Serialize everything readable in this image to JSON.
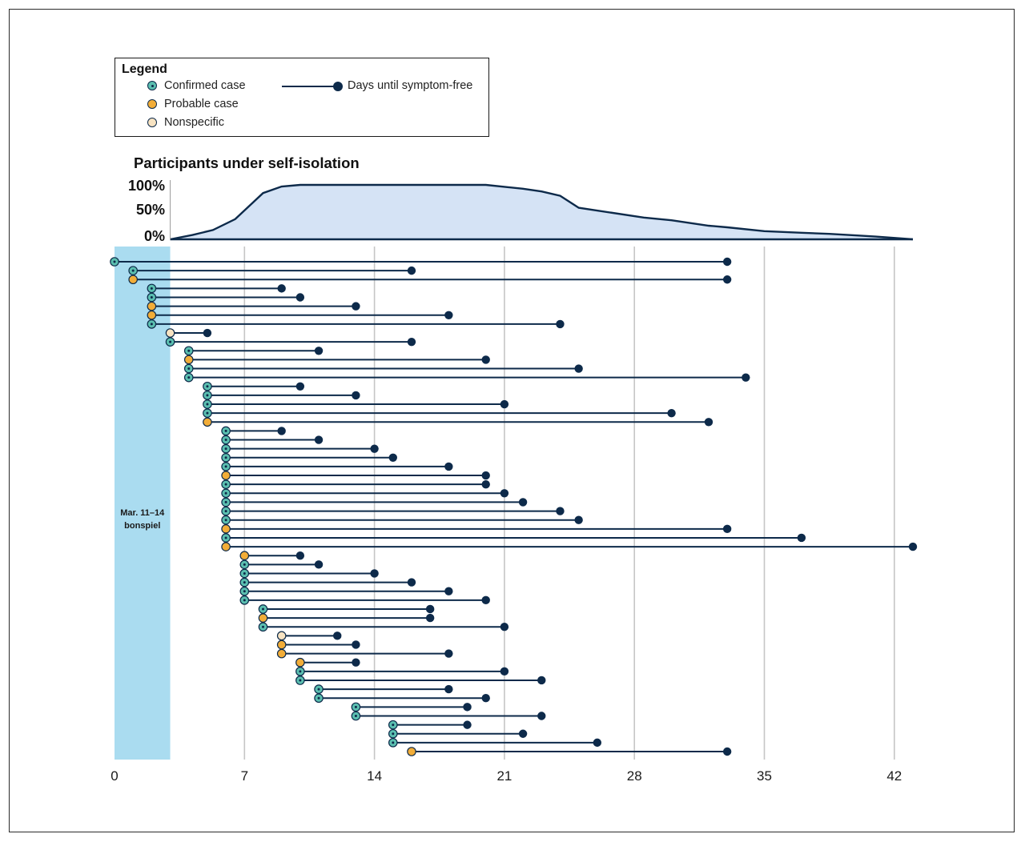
{
  "legend": {
    "title": "Legend",
    "confirmed": "Confirmed case",
    "probable": "Probable case",
    "nonspecific": "Nonspecific",
    "days": "Days until symptom-free"
  },
  "colors": {
    "confirmed": "#5bbfb0",
    "probable": "#f2ad38",
    "nonspecific": "#f7e3c2",
    "line": "#0d2a4a",
    "area_fill": "#d5e3f5",
    "bonspiel": "#aadcf0",
    "grid": "#c6c6c6"
  },
  "area_chart": {
    "title": "Participants under self-isolation",
    "y_ticks": [
      "100%",
      "50%",
      "0%"
    ]
  },
  "chart_data": {
    "type": "timeline",
    "x_ticks": [
      0,
      7,
      14,
      21,
      28,
      35,
      42
    ],
    "xlim": [
      0,
      43
    ],
    "shaded_region": {
      "start": 0,
      "end": 3,
      "label_line1": "Mar. 11–14",
      "label_line2": "bonspiel"
    },
    "isolation_curve": {
      "x": [
        3,
        4.2,
        5.3,
        6.5,
        8,
        9,
        10,
        11,
        13,
        16,
        20,
        22,
        23,
        24,
        25,
        28.5,
        30,
        32,
        33,
        35,
        37,
        38.5,
        40,
        41,
        43
      ],
      "y": [
        0,
        8,
        17,
        37,
        85,
        97,
        100,
        100,
        100,
        100,
        100,
        93,
        88,
        80,
        58,
        40,
        35,
        25,
        22,
        15,
        12,
        10,
        7,
        5,
        0
      ]
    },
    "participants": [
      {
        "type": "confirmed",
        "start": 0,
        "end": 33
      },
      {
        "type": "confirmed",
        "start": 1,
        "end": 16
      },
      {
        "type": "probable",
        "start": 1,
        "end": 33
      },
      {
        "type": "confirmed",
        "start": 2,
        "end": 9
      },
      {
        "type": "confirmed",
        "start": 2,
        "end": 10
      },
      {
        "type": "probable",
        "start": 2,
        "end": 13
      },
      {
        "type": "probable",
        "start": 2,
        "end": 18
      },
      {
        "type": "confirmed",
        "start": 2,
        "end": 24
      },
      {
        "type": "nonspecific",
        "start": 3,
        "end": 5
      },
      {
        "type": "confirmed",
        "start": 3,
        "end": 16
      },
      {
        "type": "confirmed",
        "start": 4,
        "end": 11
      },
      {
        "type": "probable",
        "start": 4,
        "end": 20
      },
      {
        "type": "confirmed",
        "start": 4,
        "end": 25
      },
      {
        "type": "confirmed",
        "start": 4,
        "end": 34
      },
      {
        "type": "confirmed",
        "start": 5,
        "end": 10
      },
      {
        "type": "confirmed",
        "start": 5,
        "end": 13
      },
      {
        "type": "confirmed",
        "start": 5,
        "end": 21
      },
      {
        "type": "confirmed",
        "start": 5,
        "end": 30
      },
      {
        "type": "probable",
        "start": 5,
        "end": 32
      },
      {
        "type": "confirmed",
        "start": 6,
        "end": 9
      },
      {
        "type": "confirmed",
        "start": 6,
        "end": 11
      },
      {
        "type": "confirmed",
        "start": 6,
        "end": 14
      },
      {
        "type": "confirmed",
        "start": 6,
        "end": 15
      },
      {
        "type": "confirmed",
        "start": 6,
        "end": 18
      },
      {
        "type": "probable",
        "start": 6,
        "end": 20
      },
      {
        "type": "confirmed",
        "start": 6,
        "end": 20
      },
      {
        "type": "confirmed",
        "start": 6,
        "end": 21
      },
      {
        "type": "confirmed",
        "start": 6,
        "end": 22
      },
      {
        "type": "confirmed",
        "start": 6,
        "end": 24
      },
      {
        "type": "confirmed",
        "start": 6,
        "end": 25
      },
      {
        "type": "probable",
        "start": 6,
        "end": 33
      },
      {
        "type": "confirmed",
        "start": 6,
        "end": 37
      },
      {
        "type": "probable",
        "start": 6,
        "end": 43
      },
      {
        "type": "probable",
        "start": 7,
        "end": 10
      },
      {
        "type": "confirmed",
        "start": 7,
        "end": 11
      },
      {
        "type": "confirmed",
        "start": 7,
        "end": 14
      },
      {
        "type": "confirmed",
        "start": 7,
        "end": 16
      },
      {
        "type": "confirmed",
        "start": 7,
        "end": 18
      },
      {
        "type": "confirmed",
        "start": 7,
        "end": 20
      },
      {
        "type": "confirmed",
        "start": 8,
        "end": 17
      },
      {
        "type": "probable",
        "start": 8,
        "end": 17
      },
      {
        "type": "confirmed",
        "start": 8,
        "end": 21
      },
      {
        "type": "nonspecific",
        "start": 9,
        "end": 12
      },
      {
        "type": "probable",
        "start": 9,
        "end": 13
      },
      {
        "type": "probable",
        "start": 9,
        "end": 18
      },
      {
        "type": "probable",
        "start": 10,
        "end": 13
      },
      {
        "type": "confirmed",
        "start": 10,
        "end": 21
      },
      {
        "type": "confirmed",
        "start": 10,
        "end": 23
      },
      {
        "type": "confirmed",
        "start": 11,
        "end": 18
      },
      {
        "type": "confirmed",
        "start": 11,
        "end": 20
      },
      {
        "type": "confirmed",
        "start": 13,
        "end": 19
      },
      {
        "type": "confirmed",
        "start": 13,
        "end": 23
      },
      {
        "type": "confirmed",
        "start": 15,
        "end": 19
      },
      {
        "type": "confirmed",
        "start": 15,
        "end": 22
      },
      {
        "type": "confirmed",
        "start": 15,
        "end": 26
      },
      {
        "type": "probable",
        "start": 16,
        "end": 33
      }
    ]
  }
}
